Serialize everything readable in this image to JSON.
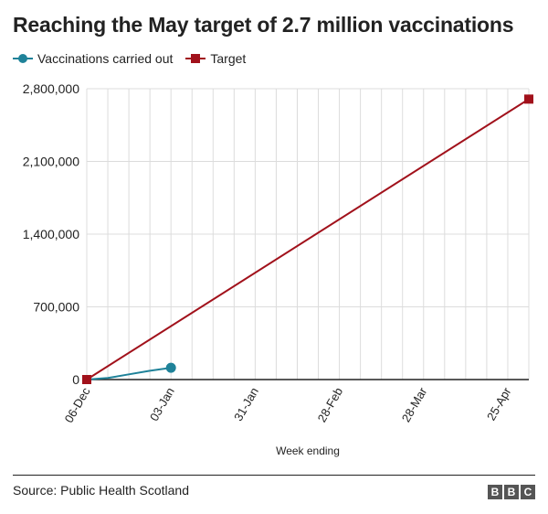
{
  "chart_data": {
    "type": "line",
    "title": "Reaching the May target of 2.7 million vaccinations",
    "xlabel": "Week ending",
    "ylabel": "",
    "ylim": [
      0,
      2800000
    ],
    "yticks": [
      0,
      700000,
      1400000,
      2100000,
      2800000
    ],
    "ytick_labels": [
      "0",
      "700,000",
      "1,400,000",
      "2,100,000",
      "2,800,000"
    ],
    "x_tick_labels": [
      "06-Dec",
      "03-Jan",
      "31-Jan",
      "28-Feb",
      "28-Mar",
      "25-Apr"
    ],
    "x_range_dates": [
      "2020-12-06",
      "2021-05-02"
    ],
    "grid": true,
    "legend_position": "top-left",
    "series": [
      {
        "name": "Vaccinations carried out",
        "color": "#1f8299",
        "marker": "circle",
        "points": [
          {
            "x": "2020-12-06",
            "y": 0
          },
          {
            "x": "2020-12-13",
            "y": 15000
          },
          {
            "x": "2020-12-20",
            "y": 50000
          },
          {
            "x": "2020-12-27",
            "y": 85000
          },
          {
            "x": "2021-01-03",
            "y": 113000
          }
        ]
      },
      {
        "name": "Target",
        "color": "#a1111b",
        "marker": "square",
        "points": [
          {
            "x": "2020-12-06",
            "y": 0
          },
          {
            "x": "2021-05-02",
            "y": 2700000
          }
        ]
      }
    ]
  },
  "source": "Source: Public Health Scotland",
  "logo": [
    "B",
    "B",
    "C"
  ]
}
